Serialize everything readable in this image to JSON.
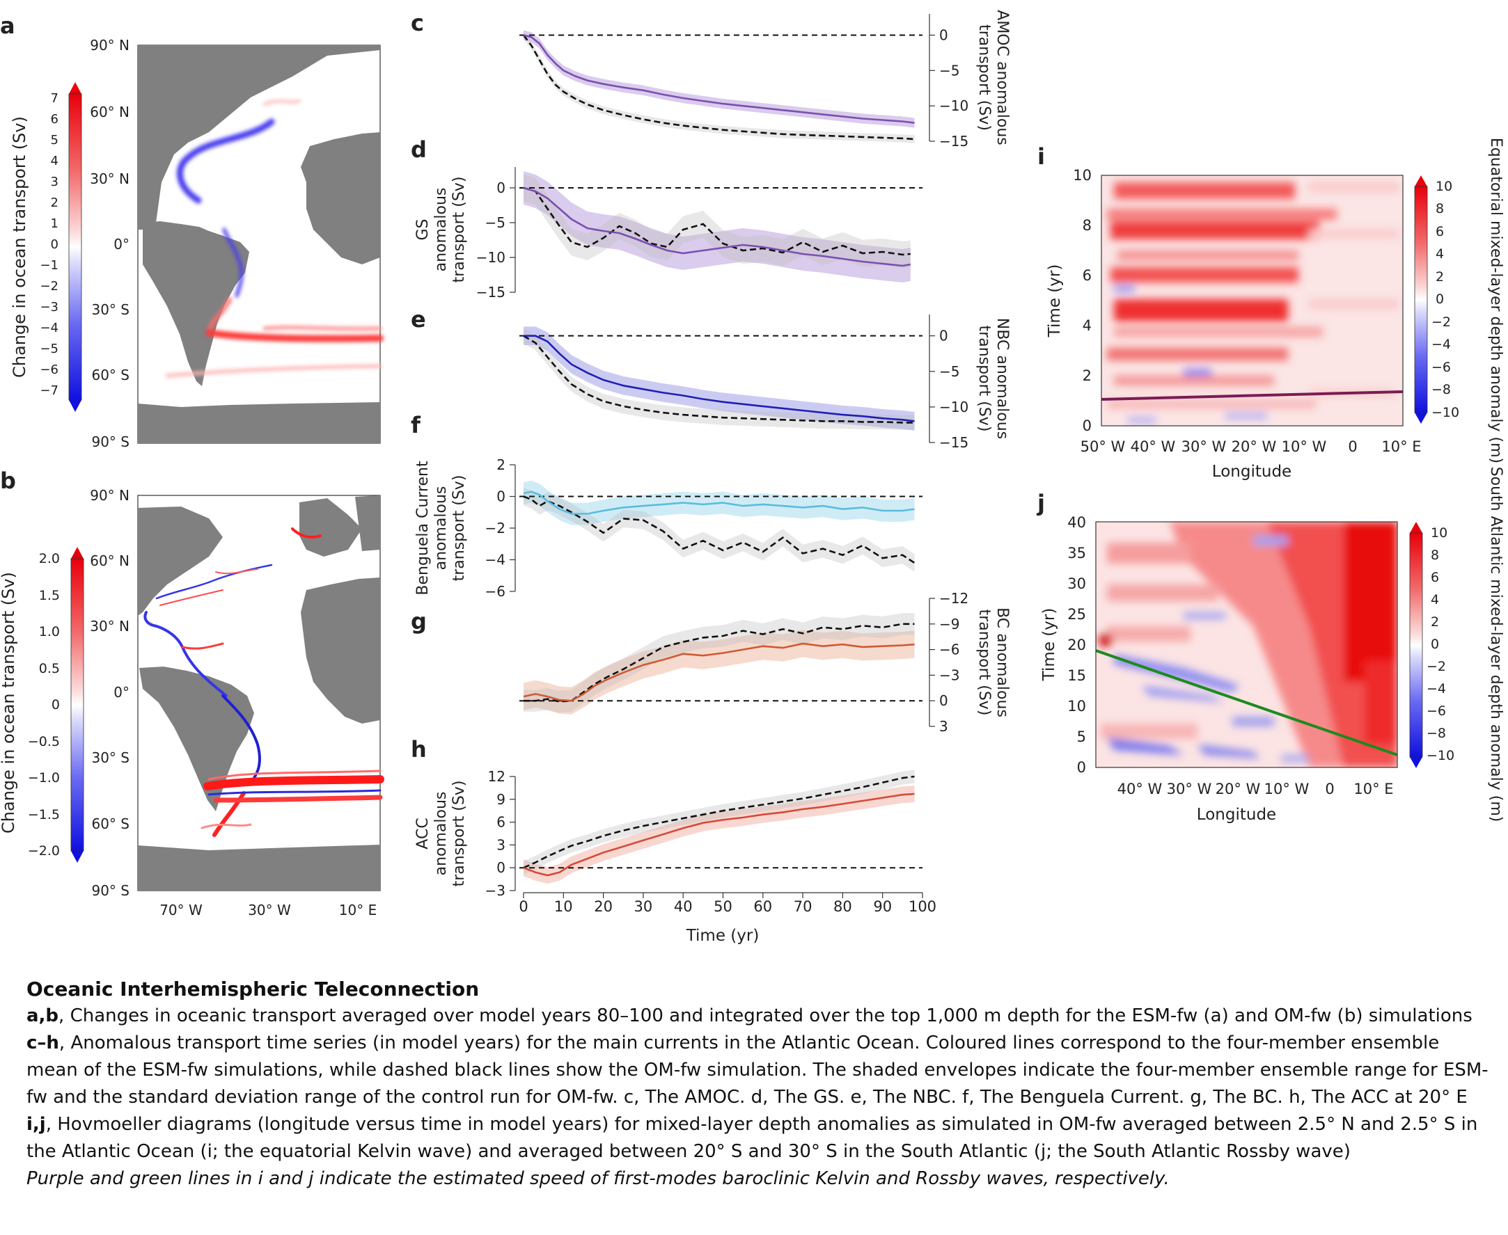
{
  "panels": {
    "a": {
      "letter": "a",
      "colorbar_label": "Change in ocean transport (Sv)",
      "colorbar_ticks": [
        "7",
        "6",
        "5",
        "4",
        "3",
        "2",
        "1",
        "0",
        "−1",
        "−2",
        "−3",
        "−4",
        "−5",
        "−6",
        "−7"
      ],
      "lat_ticks": [
        "90° N",
        "60° N",
        "30° N",
        "0°",
        "30° S",
        "60° S",
        "90° S"
      ]
    },
    "b": {
      "letter": "b",
      "colorbar_label": "Change in ocean transport (Sv)",
      "colorbar_ticks": [
        "2.0",
        "1.5",
        "1.0",
        "0.5",
        "0",
        "−0.5",
        "−1.0",
        "−1.5",
        "−2.0"
      ],
      "lat_ticks": [
        "90° N",
        "60° N",
        "30° N",
        "0°",
        "30° S",
        "60° S",
        "90° S"
      ],
      "lon_ticks": [
        "70° W",
        "30° W",
        "10° E"
      ]
    },
    "i": {
      "letter": "i",
      "ylabel": "Time (yr)",
      "xlabel": "Longitude",
      "y_ticks": [
        "0",
        "2",
        "4",
        "6",
        "8",
        "10"
      ],
      "x_ticks": [
        "50° W",
        "40° W",
        "30° W",
        "20° W",
        "10° W",
        "0",
        "10° E"
      ],
      "colorbar_label": "Equatorial mixed-layer depth anomaly (m)",
      "colorbar_ticks": [
        "10",
        "8",
        "6",
        "4",
        "2",
        "0",
        "−2",
        "−4",
        "−6",
        "−8",
        "−10"
      ]
    },
    "j": {
      "letter": "j",
      "ylabel": "Time (yr)",
      "xlabel": "Longitude",
      "y_ticks": [
        "0",
        "5",
        "10",
        "15",
        "20",
        "25",
        "30",
        "35",
        "40"
      ],
      "x_ticks": [
        "40° W",
        "30° W",
        "20° W",
        "10° W",
        "0",
        "10° E"
      ],
      "colorbar_label": "South Atlantic mixed-layer depth anomaly (m)",
      "colorbar_ticks": [
        "10",
        "8",
        "6",
        "4",
        "2",
        "0",
        "−2",
        "−4",
        "−6",
        "−8",
        "−10"
      ]
    }
  },
  "timeseries_xlabel": "Time (yr)",
  "timeseries_xticks": [
    "0",
    "10",
    "20",
    "30",
    "40",
    "50",
    "60",
    "70",
    "80",
    "90",
    "100"
  ],
  "chart_data": [
    {
      "id": "c",
      "letter": "c",
      "type": "line",
      "ylabel": [
        "AMOC anomalous",
        "transport (Sv)"
      ],
      "axis_side": "right",
      "inverted": true,
      "ylim": [
        -15,
        3
      ],
      "yticks": [
        "0",
        "−5",
        "−10",
        "−15"
      ],
      "xlim": [
        0,
        100
      ],
      "color": "#7b4fb0",
      "band_color": "#cdbbe6",
      "x": [
        0,
        2,
        4,
        6,
        8,
        10,
        13,
        16,
        20,
        25,
        30,
        35,
        40,
        45,
        50,
        55,
        60,
        65,
        70,
        75,
        80,
        85,
        90,
        95,
        98
      ],
      "ensemble_mean": [
        0,
        -0.3,
        -1.2,
        -2.8,
        -4,
        -5,
        -5.8,
        -6.4,
        -6.9,
        -7.4,
        -7.8,
        -8.4,
        -8.9,
        -9.3,
        -9.7,
        -10,
        -10.3,
        -10.6,
        -10.9,
        -11.2,
        -11.5,
        -11.8,
        -12,
        -12.2,
        -12.4
      ],
      "band_halfwidth": 0.7,
      "om_fw": [
        0,
        -1.5,
        -3.5,
        -5.5,
        -7,
        -8,
        -9,
        -9.8,
        -10.6,
        -11.3,
        -11.9,
        -12.4,
        -12.8,
        -13.1,
        -13.4,
        -13.6,
        -13.8,
        -14,
        -14.1,
        -14.2,
        -14.3,
        -14.4,
        -14.5,
        -14.6,
        -14.7
      ]
    },
    {
      "id": "d",
      "letter": "d",
      "type": "line",
      "ylabel": [
        "GS",
        "anomalous",
        "transport (Sv)"
      ],
      "axis_side": "left",
      "inverted": false,
      "ylim": [
        -15,
        3
      ],
      "yticks": [
        "0",
        "−5",
        "−10",
        "−15"
      ],
      "xlim": [
        0,
        100
      ],
      "color": "#7b4fb0",
      "band_color": "#cdbbe6",
      "x": [
        0,
        3,
        6,
        9,
        12,
        16,
        20,
        24,
        28,
        32,
        36,
        40,
        45,
        50,
        55,
        60,
        65,
        70,
        75,
        80,
        85,
        90,
        95,
        97
      ],
      "ensemble_mean": [
        0,
        -0.5,
        -1.5,
        -3,
        -4.5,
        -5.8,
        -6.2,
        -6.5,
        -7.3,
        -8.2,
        -9,
        -9.4,
        -9,
        -8.6,
        -8.2,
        -8.5,
        -9,
        -9.5,
        -9.8,
        -10.2,
        -10.6,
        -10.9,
        -11.2,
        -11
      ],
      "band_halfwidth": 2.4,
      "om_fw": [
        0,
        -0.5,
        -3,
        -5.5,
        -7.8,
        -8.5,
        -7.2,
        -5.5,
        -6.5,
        -8,
        -8.5,
        -6,
        -5.2,
        -8,
        -9,
        -8.7,
        -9.3,
        -7.8,
        -9.2,
        -8.3,
        -9.4,
        -9.2,
        -9.6,
        -9.5
      ]
    },
    {
      "id": "e",
      "letter": "e",
      "type": "line",
      "ylabel": [
        "NBC anomalous",
        "transport (Sv)"
      ],
      "axis_side": "right",
      "inverted": true,
      "ylim": [
        -15,
        3
      ],
      "yticks": [
        "0",
        "−5",
        "−10",
        "−15"
      ],
      "xlim": [
        0,
        100
      ],
      "color": "#1f1fb5",
      "band_color": "#b9b9ee",
      "x": [
        0,
        3,
        6,
        9,
        12,
        16,
        20,
        25,
        30,
        35,
        40,
        45,
        50,
        55,
        60,
        65,
        70,
        75,
        80,
        85,
        90,
        95,
        98
      ],
      "ensemble_mean": [
        0,
        0,
        -0.8,
        -2.5,
        -4,
        -5.2,
        -6.2,
        -7,
        -7.5,
        -8,
        -8.4,
        -8.9,
        -9.3,
        -9.6,
        -9.9,
        -10.2,
        -10.5,
        -10.8,
        -11.1,
        -11.3,
        -11.6,
        -11.8,
        -12
      ],
      "band_halfwidth": 1.3,
      "om_fw": [
        0,
        -1,
        -3,
        -5,
        -6.8,
        -8.2,
        -9.2,
        -9.9,
        -10.4,
        -10.8,
        -11.1,
        -11.3,
        -11.5,
        -11.6,
        -11.7,
        -11.8,
        -11.9,
        -12,
        -12,
        -12.1,
        -12.1,
        -12.2,
        -12.2
      ]
    },
    {
      "id": "f",
      "letter": "f",
      "type": "line",
      "ylabel": [
        "Benguela Current",
        "anomalous",
        "transport (Sv)"
      ],
      "axis_side": "left",
      "inverted": false,
      "ylim": [
        -6,
        2
      ],
      "yticks": [
        "2",
        "0",
        "−2",
        "−4",
        "−6"
      ],
      "xlim": [
        0,
        100
      ],
      "color": "#5bbcdd",
      "band_color": "#bfe6f3",
      "x": [
        0,
        2,
        4,
        6,
        9,
        12,
        16,
        20,
        25,
        30,
        35,
        40,
        45,
        50,
        55,
        60,
        65,
        70,
        75,
        80,
        85,
        90,
        95,
        98
      ],
      "ensemble_mean": [
        0.2,
        0.3,
        0.1,
        -0.3,
        -0.8,
        -1.1,
        -1.1,
        -0.9,
        -0.7,
        -0.6,
        -0.5,
        -0.4,
        -0.5,
        -0.4,
        -0.6,
        -0.5,
        -0.6,
        -0.7,
        -0.6,
        -0.8,
        -0.7,
        -0.9,
        -0.9,
        -0.8
      ],
      "band_halfwidth": 0.7,
      "om_fw": [
        0,
        -0.2,
        -0.6,
        -0.3,
        -0.6,
        -1,
        -1.6,
        -2.3,
        -1.4,
        -1.5,
        -2.2,
        -3.3,
        -2.8,
        -3.4,
        -2.9,
        -3.5,
        -2.6,
        -3.6,
        -3.3,
        -3.7,
        -3.1,
        -3.9,
        -3.7,
        -4.2
      ]
    },
    {
      "id": "g",
      "letter": "g",
      "type": "line",
      "ylabel": [
        "BC anomalous",
        "transport (Sv)"
      ],
      "axis_side": "right",
      "inverted": true,
      "ylim": [
        -12,
        3
      ],
      "yticks": [
        "−12",
        "−9",
        "−6",
        "−3",
        "0",
        "3"
      ],
      "xlim": [
        0,
        100
      ],
      "color": "#cf5a33",
      "band_color": "#f3cdbd",
      "x": [
        0,
        3,
        6,
        9,
        12,
        15,
        18,
        21,
        25,
        30,
        35,
        40,
        45,
        50,
        55,
        60,
        65,
        70,
        75,
        80,
        85,
        90,
        95,
        98
      ],
      "ensemble_mean": [
        -0.5,
        -0.8,
        -0.5,
        -0.1,
        0,
        -0.8,
        -1.8,
        -2.5,
        -3.3,
        -4.2,
        -4.8,
        -5.5,
        -5.3,
        -5.6,
        -6,
        -6.4,
        -6.2,
        -6.7,
        -6.4,
        -6.6,
        -6.3,
        -6.4,
        -6.5,
        -6.6
      ],
      "band_halfwidth": 1.6,
      "om_fw": [
        0,
        0,
        -0.2,
        0.1,
        0,
        -1,
        -2,
        -2.8,
        -3.7,
        -5,
        -6.3,
        -6.9,
        -7.4,
        -7.6,
        -8.2,
        -7.8,
        -8.4,
        -7.9,
        -8.6,
        -8.4,
        -8.8,
        -8.6,
        -9,
        -9
      ]
    },
    {
      "id": "h",
      "letter": "h",
      "type": "line",
      "ylabel": [
        "ACC",
        "anomalous",
        "transport (Sv)"
      ],
      "axis_side": "left",
      "inverted": false,
      "ylim": [
        -3,
        12
      ],
      "yticks": [
        "12",
        "9",
        "6",
        "3",
        "0",
        "−3"
      ],
      "xlim": [
        0,
        100
      ],
      "color": "#d44b38",
      "band_color": "#f5c9c2",
      "x": [
        0,
        3,
        6,
        9,
        12,
        16,
        20,
        25,
        30,
        35,
        40,
        45,
        50,
        55,
        60,
        65,
        70,
        75,
        80,
        85,
        90,
        95,
        98
      ],
      "ensemble_mean": [
        0,
        -0.6,
        -1,
        -0.6,
        0.4,
        1.2,
        2,
        2.8,
        3.6,
        4.4,
        5.2,
        5.9,
        6.3,
        6.6,
        7,
        7.3,
        7.7,
        8,
        8.4,
        8.8,
        9.2,
        9.6,
        9.7
      ],
      "band_halfwidth": 1.1,
      "om_fw": [
        0,
        0.7,
        1.5,
        2.2,
        2.9,
        3.5,
        4.2,
        4.9,
        5.5,
        6,
        6.5,
        7,
        7.5,
        7.9,
        8.3,
        8.7,
        9.1,
        9.6,
        10.1,
        10.6,
        11.2,
        11.8,
        12
      ]
    }
  ],
  "caption": {
    "title": "Oceanic Interhemispheric Teleconnection",
    "p1_bold": "a,b",
    "p1_text": ", Changes in oceanic transport averaged over model years 80–100 and integrated over the top 1,000 m depth for the ESM-fw (a) and OM-fw (b) simulations",
    "p2_bold": "c–h",
    "p2_text": ", Anomalous transport time series (in model years) for the main currents in the Atlantic Ocean. Coloured lines correspond to the four-member ensemble mean of the ESM-fw simulations, while dashed black lines show the OM-fw simulation. The shaded envelopes indicate the four-member ensemble range for ESM-fw and the standard deviation range of the control run for OM-fw. c, The AMOC. d, The GS. e, The NBC. f, The Benguela Current. g, The BC. h, The ACC at 20° E",
    "p3_bold": "i,j",
    "p3_text": ", Hovmoeller diagrams (longitude versus time in model years) for mixed-layer depth anomalies as simulated in OM-fw averaged between 2.5° N and 2.5° S in the Atlantic Ocean (i; the equatorial Kelvin wave) and averaged between 20° S and 30° S in the South Atlantic (j; the South Atlantic Rossby wave)",
    "note": "Purple and green lines in i and j indicate the estimated speed of first-modes baroclinic Kelvin and Rossby waves, respectively."
  }
}
